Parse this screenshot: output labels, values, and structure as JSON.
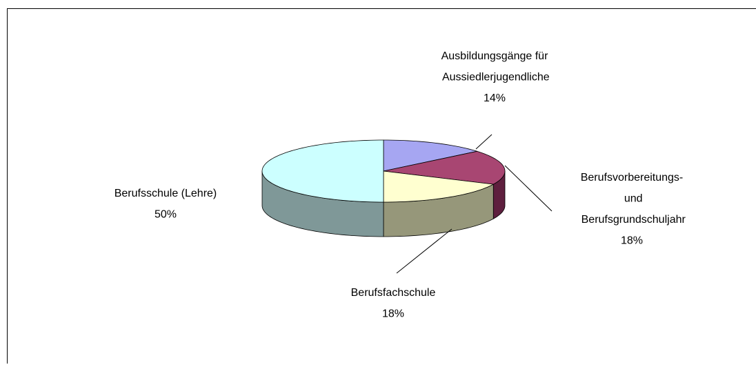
{
  "chart_data": {
    "type": "pie",
    "categories": [
      "Ausbildungsgänge für Aussiedlerjugendliche",
      "Berufsvorbereitungs- und Berufsgrundschuljahr",
      "Berufsfachschule",
      "Berufsschule (Lehre)"
    ],
    "values": [
      14,
      18,
      18,
      50
    ],
    "value_labels": [
      "14%",
      "18%",
      "18%",
      "50%"
    ],
    "colors": [
      "#a6a6f2",
      "#a84672",
      "#ffffd0",
      "#ccffff"
    ],
    "side_colors": [
      "#6f6fa8",
      "#5e1f3e",
      "#96977a",
      "#7f9898"
    ]
  }
}
